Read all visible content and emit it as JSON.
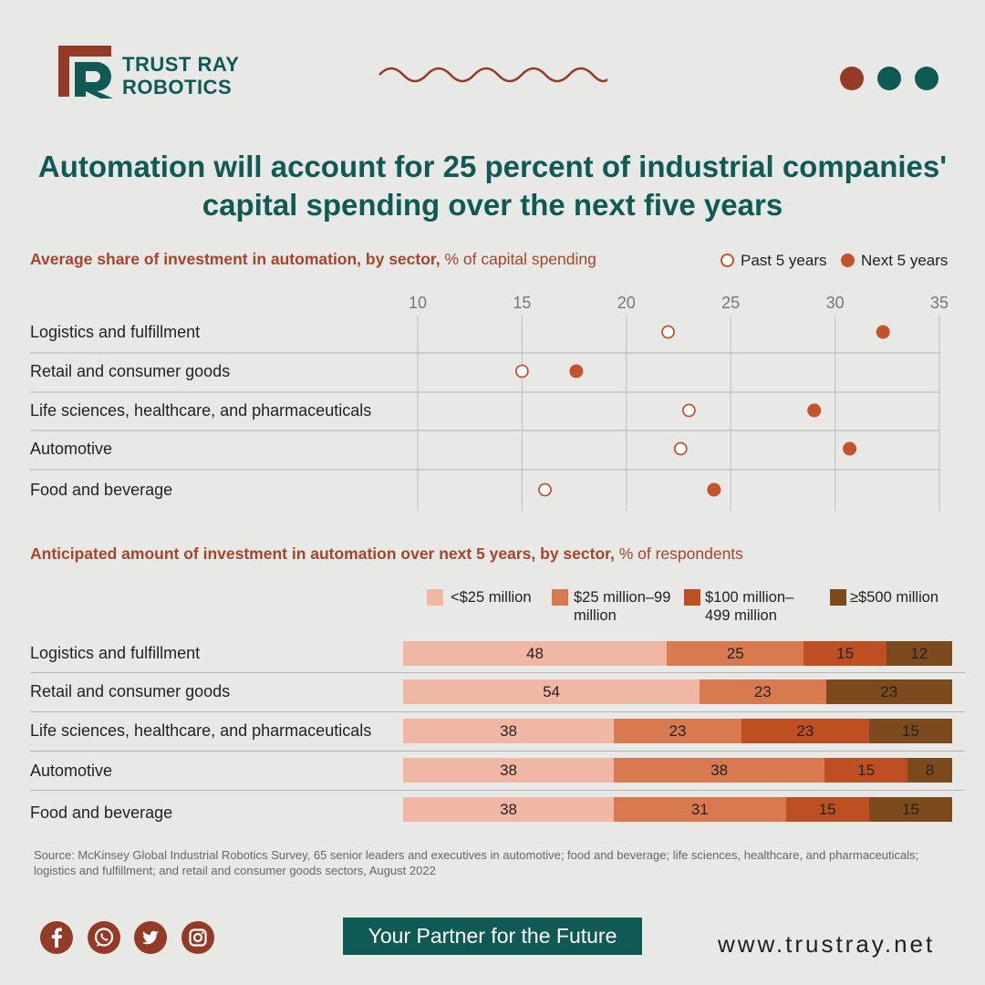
{
  "brand": {
    "logo_letters": "TR",
    "line1": "TRUST RAY",
    "line2": "ROBOTICS",
    "brand_color": "#0f5a55",
    "accent_color": "#933b26"
  },
  "title": "Automation will account for 25 percent of industrial companies' capital spending over the next five years",
  "section1": {
    "title_bold": "Average share of investment in automation, by sector,",
    "title_unit": "% of capital spending"
  },
  "section2": {
    "title_bold": "Anticipated amount of investment in automation over next 5 years, by sector,",
    "title_unit": "% of respondents"
  },
  "chart_data": [
    {
      "type": "scatter",
      "subtype": "dot-plot",
      "title": "Average share of investment in automation, by sector, % of capital spending",
      "categories": [
        "Logistics and fulfillment",
        "Retail and consumer goods",
        "Life sciences, healthcare, and pharmaceuticals",
        "Automotive",
        "Food and beverage"
      ],
      "x_ticks": [
        10,
        15,
        20,
        25,
        30,
        35
      ],
      "xlim": [
        10,
        35
      ],
      "grid": true,
      "legend_placement": "top-right",
      "series": [
        {
          "name": "Past 5 years",
          "marker": "hollow",
          "color": "#c4532c",
          "values": [
            22,
            15,
            23,
            22.6,
            16.1
          ]
        },
        {
          "name": "Next 5 years",
          "marker": "filled",
          "color": "#c4532c",
          "values": [
            32.3,
            17.6,
            29,
            30.7,
            24.2
          ]
        }
      ]
    },
    {
      "type": "bar",
      "subtype": "stacked-horizontal",
      "title": "Anticipated amount of investment in automation over next 5 years, by sector, % of respondents",
      "legend_placement": "top",
      "categories": [
        "Logistics and fulfillment",
        "Retail and consumer goods",
        "Life sciences, healthcare, and pharmaceuticals",
        "Automotive",
        "Food and beverage"
      ],
      "series": [
        {
          "name": "<$25 million",
          "color": "#f0b8a4",
          "values": [
            48,
            54,
            38,
            38,
            38
          ]
        },
        {
          "name": "$25 million–99 million",
          "color": "#d9794f",
          "values": [
            25,
            23,
            23,
            38,
            31
          ]
        },
        {
          "name": "$100 million–499 million",
          "color": "#bd4f22",
          "values": [
            15,
            0,
            23,
            15,
            15
          ]
        },
        {
          "name": "≥$500 million",
          "color": "#7c4a1c",
          "values": [
            12,
            23,
            15,
            8,
            15
          ]
        }
      ]
    }
  ],
  "source": "Source: McKinsey Global Industrial Robotics Survey, 65 senior leaders and executives in automotive; food and beverage; life sciences, healthcare, and pharmaceuticals; logistics and fulfillment; and retail and consumer goods sectors, August 2022",
  "footer": {
    "social_icons": [
      "facebook-icon",
      "whatsapp-icon",
      "twitter-icon",
      "instagram-icon"
    ],
    "tagline": "Your Partner for the Future",
    "website": "www.trustray.net"
  }
}
